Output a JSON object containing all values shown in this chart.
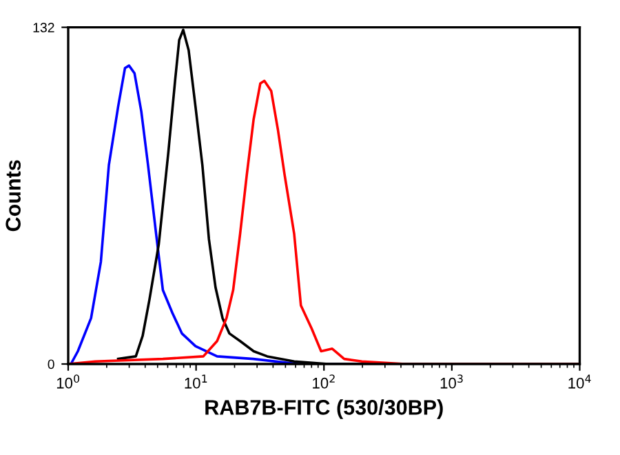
{
  "chart_data": {
    "type": "line",
    "xlabel": "RAB7B-FITC (530/30BP)",
    "ylabel": "Counts",
    "log": "x",
    "xlim": [
      1,
      10000
    ],
    "ylim": [
      0,
      132
    ],
    "xticks": [
      {
        "value": 1,
        "label": "10$^{0}$"
      },
      {
        "value": 10,
        "label": "10$^{1}$"
      },
      {
        "value": 100,
        "label": "10$^{2}$"
      },
      {
        "value": 1000,
        "label": "10$^{3}$"
      },
      {
        "value": 10000,
        "label": "10$^{4}$"
      }
    ],
    "yticks": [
      0,
      132
    ],
    "grid": false,
    "marker": "none",
    "line_style": "solid",
    "series": [
      {
        "color": "#0000ff",
        "x": [
          1.05,
          1.19,
          1.51,
          1.8,
          2.08,
          2.46,
          2.78,
          2.99,
          3.3,
          3.73,
          4.21,
          4.87,
          5.5,
          6.53,
          7.74,
          9.9,
          14.6,
          28,
          63,
          10000
        ],
        "values": [
          0,
          5,
          18,
          40,
          78,
          101,
          116,
          117,
          114,
          99,
          78,
          51,
          29,
          20,
          12,
          7,
          3,
          2,
          0,
          0
        ]
      },
      {
        "color": "#000000",
        "x": [
          2.46,
          3.38,
          3.82,
          4.31,
          5.11,
          6.07,
          6.85,
          7.38,
          7.93,
          8.75,
          9.89,
          11.2,
          12.6,
          14.2,
          16.1,
          18.2,
          22.1,
          28.2,
          36,
          58.5,
          108,
          10000
        ],
        "values": [
          2,
          3,
          11,
          25,
          47,
          83,
          111,
          127,
          131,
          123,
          101,
          78,
          49,
          30,
          18,
          12,
          9,
          5,
          3,
          1,
          0,
          0
        ]
      },
      {
        "color": "#ff0000",
        "x": [
          1,
          1.63,
          5.5,
          11.4,
          14.6,
          17.3,
          19.5,
          22.1,
          24.9,
          28.2,
          31.8,
          34.2,
          38.7,
          43.6,
          49.3,
          58.5,
          66,
          80,
          95,
          116,
          144,
          198,
          432,
          10000
        ],
        "values": [
          0,
          1,
          2,
          3,
          9,
          18,
          29,
          51,
          74,
          96,
          110,
          111,
          107,
          92,
          74,
          51,
          23,
          14,
          5,
          6,
          2,
          1,
          0,
          0
        ]
      }
    ]
  }
}
